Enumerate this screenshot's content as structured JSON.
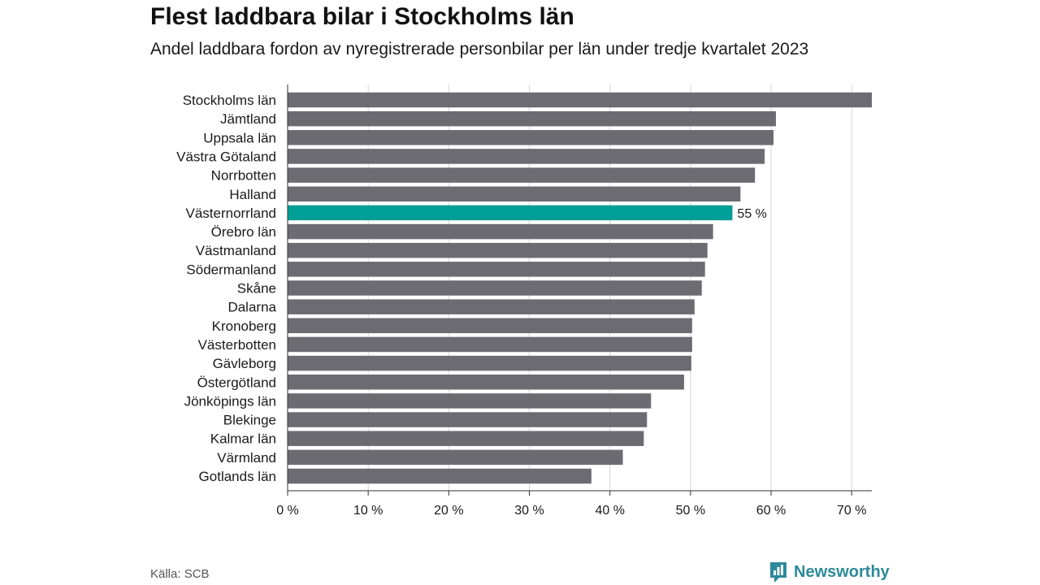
{
  "header": {
    "title": "Flest laddbara bilar i Stockholms län",
    "subtitle": "Andel laddbara fordon av nyregistrerade personbilar per län under tredje kvartalet 2023"
  },
  "footer": {
    "source": "Källa: SCB",
    "brand": "Newsworthy"
  },
  "colors": {
    "bar": "#6d6b72",
    "highlight": "#009e96",
    "grid": "#d6d6d6",
    "axis": "#333333",
    "brand": "#2c8a9a"
  },
  "chart_data": {
    "type": "bar",
    "orientation": "horizontal",
    "title": "Flest laddbara bilar i Stockholms län",
    "subtitle": "Andel laddbara fordon av nyregistrerade personbilar per län under tredje kvartalet 2023",
    "xlabel": "",
    "ylabel": "",
    "xlim": [
      0,
      72.5
    ],
    "ticks": [
      0,
      10,
      20,
      30,
      40,
      50,
      60,
      70
    ],
    "tick_labels": [
      "0 %",
      "10 %",
      "20 %",
      "30 %",
      "40 %",
      "50 %",
      "60 %",
      "70 %"
    ],
    "grid": true,
    "categories": [
      "Stockholms län",
      "Jämtland",
      "Uppsala län",
      "Västra Götaland",
      "Norrbotten",
      "Halland",
      "Västernorrland",
      "Örebro län",
      "Västmanland",
      "Södermanland",
      "Skåne",
      "Dalarna",
      "Kronoberg",
      "Västerbotten",
      "Gävleborg",
      "Östergötland",
      "Jönköpings län",
      "Blekinge",
      "Kalmar län",
      "Värmland",
      "Gotlands län"
    ],
    "values": [
      72.5,
      60.6,
      60.3,
      59.2,
      58.0,
      56.2,
      55.2,
      52.8,
      52.1,
      51.8,
      51.4,
      50.5,
      50.2,
      50.2,
      50.1,
      49.2,
      45.1,
      44.6,
      44.2,
      41.6,
      37.7
    ],
    "highlight": "Västernorrland",
    "highlight_label": "55 %"
  }
}
